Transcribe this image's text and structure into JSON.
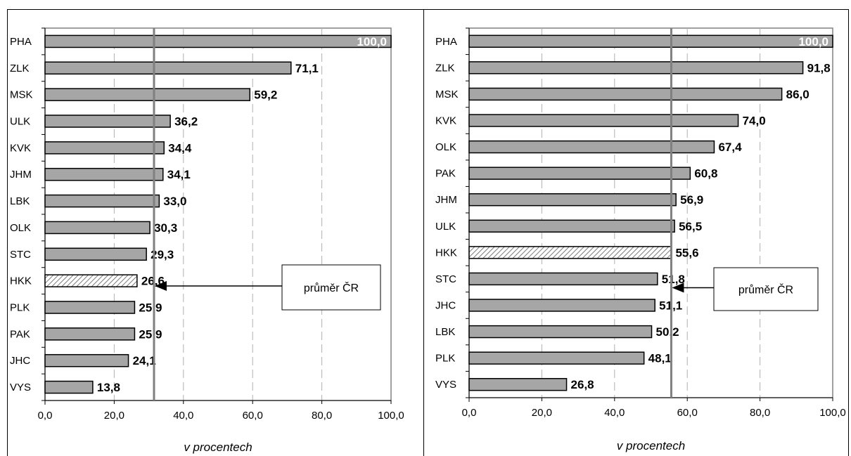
{
  "colors": {
    "bar": "#a6a6a6",
    "bar_highlight_pattern": "hatched",
    "mean_line": "#808080",
    "gridline": "#b0b0b0"
  },
  "chart_data": [
    {
      "type": "bar",
      "orientation": "horizontal",
      "categories": [
        "PHA",
        "ZLK",
        "MSK",
        "ULK",
        "KVK",
        "JHM",
        "LBK",
        "OLK",
        "STC",
        "HKK",
        "PLK",
        "PAK",
        "JHC",
        "VYS"
      ],
      "values": [
        100.0,
        71.1,
        59.2,
        36.2,
        34.4,
        34.1,
        33.0,
        30.3,
        29.3,
        26.6,
        25.9,
        25.9,
        24.1,
        13.8
      ],
      "value_labels": [
        "100,0",
        "71,1",
        "59,2",
        "36,2",
        "34,4",
        "34,1",
        "33,0",
        "30,3",
        "29,3",
        "26,6",
        "25,9",
        "25,9",
        "24,1",
        "13,8"
      ],
      "highlight_category": "HKK",
      "mean_value": 31.5,
      "callout": "průměr ČR",
      "xlabel": "v procentech",
      "xlim": [
        0,
        100
      ],
      "xticks": [
        "0,0",
        "20,0",
        "40,0",
        "60,0",
        "80,0",
        "100,0"
      ],
      "grid": "vertical dashed"
    },
    {
      "type": "bar",
      "orientation": "horizontal",
      "categories": [
        "PHA",
        "ZLK",
        "MSK",
        "KVK",
        "OLK",
        "PAK",
        "JHM",
        "ULK",
        "HKK",
        "STC",
        "JHC",
        "LBK",
        "PLK",
        "VYS"
      ],
      "values": [
        100.0,
        91.8,
        86.0,
        74.0,
        67.4,
        60.8,
        56.9,
        56.5,
        55.6,
        51.8,
        51.1,
        50.2,
        48.1,
        26.8
      ],
      "value_labels": [
        "100,0",
        "91,8",
        "86,0",
        "74,0",
        "67,4",
        "60,8",
        "56,9",
        "56,5",
        "55,6",
        "51,8",
        "51,1",
        "50,2",
        "48,1",
        "26,8"
      ],
      "highlight_category": "HKK",
      "mean_value": 55.6,
      "callout": "průměr ČR",
      "xlabel": "v procentech",
      "xlim": [
        0,
        100
      ],
      "xticks": [
        "0,0",
        "20,0",
        "40,0",
        "60,0",
        "80,0",
        "100,0"
      ],
      "grid": "vertical dashed"
    }
  ]
}
